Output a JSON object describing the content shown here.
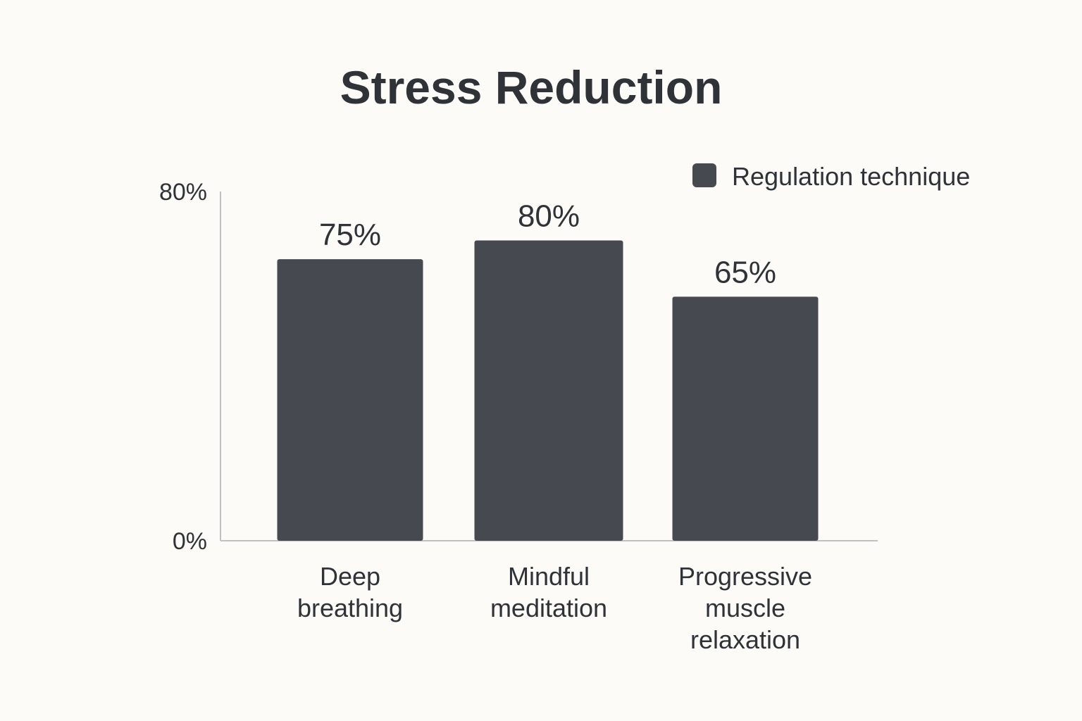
{
  "chart_data": {
    "type": "bar",
    "title": "Stress Reduction",
    "categories": [
      [
        "Deep",
        "breathing"
      ],
      [
        "Mindful",
        "meditation"
      ],
      [
        "Progressive",
        "muscle",
        "relaxation"
      ]
    ],
    "series": [
      {
        "name": "Regulation technique",
        "values": [
          75,
          80,
          65
        ],
        "value_labels": [
          "75%",
          "80%",
          "65%"
        ]
      }
    ],
    "y_ticks": [
      {
        "value": 0,
        "label": "0%"
      },
      {
        "value": 80,
        "label": "80%"
      }
    ],
    "ylim": [
      0,
      80
    ],
    "grid": false,
    "legend_position": "top-right",
    "colors": {
      "bar": "#464a50",
      "axis": "#bfc0c2",
      "text": "#2f3338",
      "background": "#fcfbf7"
    }
  }
}
